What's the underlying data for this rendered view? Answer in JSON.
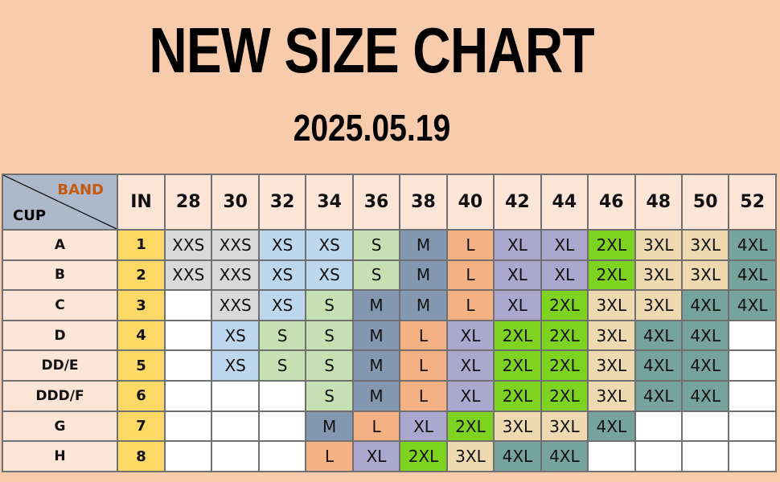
{
  "title": "NEW SIZE CHART",
  "date": "2025.05.19",
  "table": {
    "corner_band": "BAND",
    "corner_cup": "CUP",
    "in_header": "IN",
    "bands": [
      "28",
      "30",
      "32",
      "34",
      "36",
      "38",
      "40",
      "42",
      "44",
      "46",
      "48",
      "50",
      "52"
    ],
    "rows": [
      {
        "cup": "A",
        "in": "1",
        "sizes": [
          "XXS",
          "XXS",
          "XS",
          "XS",
          "S",
          "M",
          "L",
          "XL",
          "XL",
          "2XL",
          "3XL",
          "3XL",
          "4XL"
        ]
      },
      {
        "cup": "B",
        "in": "2",
        "sizes": [
          "XXS",
          "XXS",
          "XS",
          "XS",
          "S",
          "M",
          "L",
          "XL",
          "XL",
          "2XL",
          "3XL",
          "3XL",
          "4XL"
        ]
      },
      {
        "cup": "C",
        "in": "3",
        "sizes": [
          "",
          "XXS",
          "XS",
          "S",
          "M",
          "M",
          "L",
          "XL",
          "2XL",
          "3XL",
          "3XL",
          "4XL",
          "4XL"
        ]
      },
      {
        "cup": "D",
        "in": "4",
        "sizes": [
          "",
          "XS",
          "S",
          "S",
          "M",
          "L",
          "XL",
          "2XL",
          "2XL",
          "3XL",
          "4XL",
          "4XL",
          ""
        ]
      },
      {
        "cup": "DD/E",
        "in": "5",
        "sizes": [
          "",
          "XS",
          "S",
          "S",
          "M",
          "L",
          "XL",
          "2XL",
          "2XL",
          "3XL",
          "4XL",
          "4XL",
          ""
        ]
      },
      {
        "cup": "DDD/F",
        "in": "6",
        "sizes": [
          "",
          "",
          "",
          "S",
          "M",
          "L",
          "XL",
          "2XL",
          "2XL",
          "3XL",
          "4XL",
          "4XL",
          ""
        ]
      },
      {
        "cup": "G",
        "in": "7",
        "sizes": [
          "",
          "",
          "",
          "M",
          "L",
          "XL",
          "2XL",
          "3XL",
          "3XL",
          "4XL",
          "",
          "",
          ""
        ]
      },
      {
        "cup": "H",
        "in": "8",
        "sizes": [
          "",
          "",
          "",
          "L",
          "XL",
          "2XL",
          "3XL",
          "4XL",
          "4XL",
          "",
          "",
          "",
          ""
        ]
      }
    ],
    "size_colors": {
      "XXS": "#d9d9d9",
      "XS": "#bdd7ee",
      "S": "#c6e0b4",
      "M": "#8497b0",
      "L": "#f4b183",
      "XL": "#aba7cf",
      "2XL": "#7ed321",
      "3XL": "#eed9b0",
      "4XL": "#76a39d"
    }
  }
}
